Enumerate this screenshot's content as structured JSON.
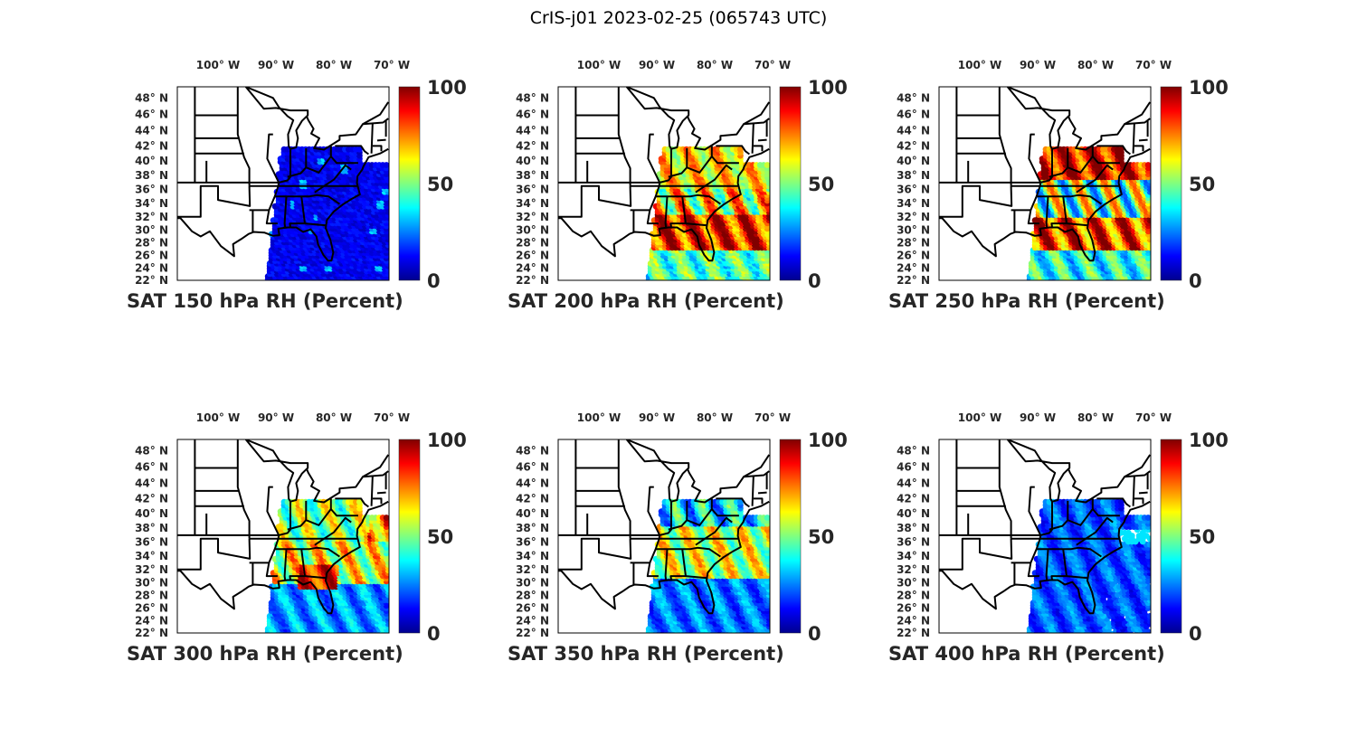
{
  "figure_title": "CrIS-j01 2023-02-25 (065743 UTC)",
  "chart_data": {
    "type": "heatmap",
    "colormap": "jet",
    "clim": [
      0,
      100
    ],
    "colorbar_ticks": [
      "0",
      "50",
      "100"
    ],
    "lon_ticks": [
      "100° W",
      "90° W",
      "80° W",
      "70° W"
    ],
    "lat_ticks": [
      "48° N",
      "46° N",
      "44° N",
      "42° N",
      "40° N",
      "38° N",
      "36° N",
      "34° N",
      "32° N",
      "30° N",
      "28° N",
      "26° N",
      "24° N",
      "22° N"
    ],
    "panels": [
      {
        "title": "SAT 150 hPa RH (Percent)"
      },
      {
        "title": "SAT 200 hPa RH (Percent)"
      },
      {
        "title": "SAT 250 hPa RH (Percent)"
      },
      {
        "title": "SAT 300 hPa RH (Percent)"
      },
      {
        "title": "SAT 350 hPa RH (Percent)"
      },
      {
        "title": "SAT 400 hPa RH (Percent)"
      }
    ]
  }
}
